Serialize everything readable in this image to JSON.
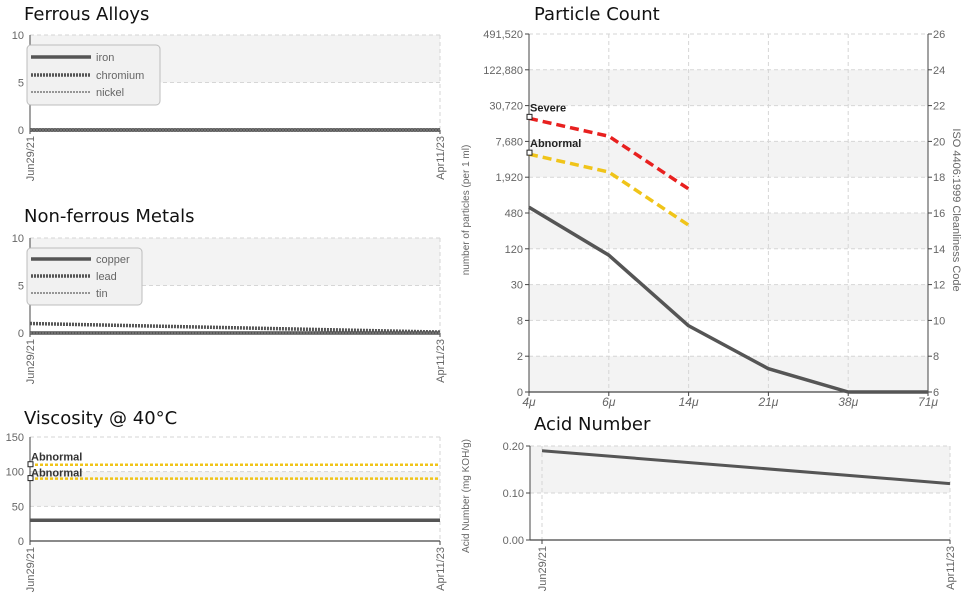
{
  "charts": {
    "ferrous": {
      "title": "Ferrous Alloys",
      "ymax": 10,
      "yticks": [
        0,
        5,
        10
      ],
      "xticks": [
        "Jun29/21",
        "Apr11/23"
      ],
      "legend": [
        "iron",
        "chromium",
        "nickel"
      ]
    },
    "nonferrous": {
      "title": "Non-ferrous Metals",
      "ymax": 10,
      "yticks": [
        0,
        5,
        10
      ],
      "xticks": [
        "Jun29/21",
        "Apr11/23"
      ],
      "legend": [
        "copper",
        "lead",
        "tin"
      ]
    },
    "viscosity": {
      "title": "Viscosity @ 40°C",
      "ymax": 150,
      "yticks": [
        0,
        50,
        100,
        150
      ],
      "xticks": [
        "Jun29/21",
        "Apr11/23"
      ],
      "limit_labels": [
        "Abnormal",
        "Abnormal"
      ]
    },
    "particle": {
      "title": "Particle Count",
      "ylabel": "number of particles (per 1 ml)",
      "y2label": "ISO 4406:1999 Cleanliness Code",
      "yticks": [
        "0",
        "2",
        "8",
        "30",
        "120",
        "480",
        "1,920",
        "7,680",
        "30,720",
        "122,880",
        "491,520"
      ],
      "y2ticks": [
        "6",
        "8",
        "10",
        "12",
        "14",
        "16",
        "18",
        "20",
        "22",
        "24",
        "26"
      ],
      "xticks": [
        "4μ",
        "6μ",
        "14μ",
        "21μ",
        "38μ",
        "71μ"
      ],
      "limit_labels": [
        "Severe",
        "Abnormal"
      ]
    },
    "acid": {
      "title": "Acid Number",
      "ylabel": "Acid Number (mg KOH/g)",
      "yticks": [
        "0.00",
        "0.10",
        "0.20"
      ],
      "xticks": [
        "Jun29/21",
        "Apr11/23"
      ]
    }
  },
  "chart_data": [
    {
      "type": "line",
      "title": "Ferrous Alloys",
      "x": [
        "Jun29/21",
        "Apr11/23"
      ],
      "ylim": [
        0,
        10
      ],
      "series": [
        {
          "name": "iron",
          "values": [
            0,
            0
          ]
        },
        {
          "name": "chromium",
          "values": [
            0,
            0
          ]
        },
        {
          "name": "nickel",
          "values": [
            0,
            0
          ]
        }
      ],
      "legend": "top-left"
    },
    {
      "type": "line",
      "title": "Non-ferrous Metals",
      "x": [
        "Jun29/21",
        "Apr11/23"
      ],
      "ylim": [
        0,
        10
      ],
      "series": [
        {
          "name": "copper",
          "values": [
            0,
            0
          ]
        },
        {
          "name": "lead",
          "values": [
            1,
            0.1
          ]
        },
        {
          "name": "tin",
          "values": [
            0,
            0
          ]
        }
      ],
      "legend": "top-left"
    },
    {
      "type": "line",
      "title": "Viscosity @ 40°C",
      "x": [
        "Jun29/21",
        "Apr11/23"
      ],
      "ylim": [
        0,
        150
      ],
      "series": [
        {
          "values": [
            30,
            30
          ]
        }
      ],
      "limits": [
        {
          "label": "Abnormal",
          "value": 110
        },
        {
          "label": "Abnormal",
          "value": 90
        }
      ]
    },
    {
      "type": "line",
      "title": "Particle Count",
      "x": [
        "4μ",
        "6μ",
        "14μ",
        "21μ",
        "38μ",
        "71μ"
      ],
      "ylabel": "number of particles (per 1 ml)",
      "y2label": "ISO 4406:1999 Cleanliness Code",
      "y_scale": "log",
      "series": [
        {
          "values": [
            640,
            100,
            6.5,
            1.3,
            0,
            0
          ]
        }
      ],
      "limits": [
        {
          "label": "Severe",
          "values": [
            20000,
            10000,
            1300
          ]
        },
        {
          "label": "Abnormal",
          "values": [
            5000,
            2500,
            320
          ]
        }
      ]
    },
    {
      "type": "line",
      "title": "Acid Number",
      "x": [
        "Jun29/21",
        "Apr11/23"
      ],
      "ylabel": "Acid Number (mg KOH/g)",
      "ylim": [
        0,
        0.2
      ],
      "series": [
        {
          "values": [
            0.19,
            0.12
          ]
        }
      ]
    }
  ]
}
